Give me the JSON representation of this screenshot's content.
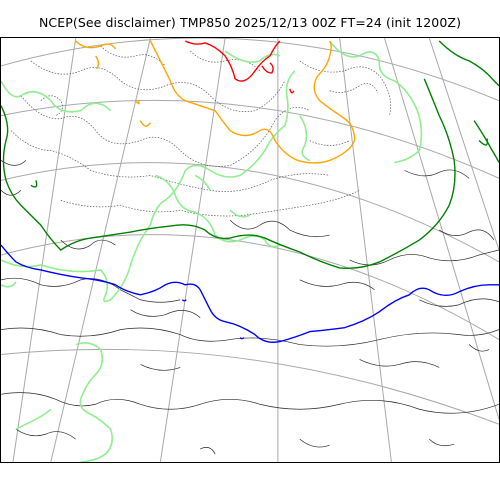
{
  "title": "NCEP(See disclaimer) TMP850 2025/12/13 00Z FT=24 (init 1200Z)",
  "map": {
    "colors": {
      "graticule": "#a8a8a8",
      "coastline": "#2a2a2a",
      "dotted_isotherm": "#555555",
      "isotherm_light_green": "#90ee90",
      "isotherm_dark_green": "#008000",
      "isotherm_orange": "#ffa500",
      "isotherm_red": "#ff0000",
      "isotherm_blue": "#0000ff"
    }
  }
}
